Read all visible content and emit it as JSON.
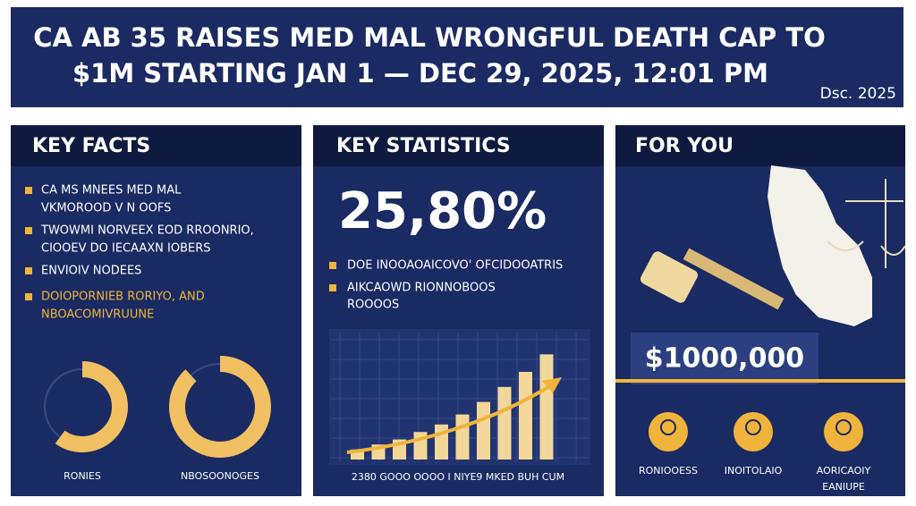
{
  "header": {
    "title_lines": [
      "CA AB 35 RAISES MED MAL WRONGFUL DEATH CAP TO",
      "$1M STARTING JAN 1 — DEC 29, 2025, 12:01 PM"
    ],
    "date": "Dsc. 2025"
  },
  "panels": {
    "key_facts": {
      "title": "KEY FACTS",
      "bullets": [
        {
          "lines": [
            "CA MS MNEES MED MAL",
            "VKMOROOD V N OOFS"
          ],
          "color": "#ffffff"
        },
        {
          "lines": [
            "TWOWMI NORVEEX EOD RROONRIO,",
            "CIOOEV DO IECAAXN IOBERS"
          ],
          "color": "#ffffff"
        },
        {
          "lines": [
            "ENVIOIV NODEES"
          ],
          "color": "#ffffff"
        },
        {
          "lines": [
            "DOIOPORNIEB RORIYO, AND",
            "NBOACOMIVRUUNE"
          ],
          "color": "#f0b43c"
        }
      ],
      "donuts": [
        {
          "label": "RONIES",
          "value": 60
        },
        {
          "label": "NBOSOONOGES",
          "value": 88
        }
      ]
    },
    "key_statistics": {
      "title": "KEY STATISTICS",
      "figure": "25,80%",
      "bullets": [
        {
          "lines": [
            "DOE INOOAOAICOVO' OFCIDOOATRIS"
          ]
        },
        {
          "lines": [
            "AIKCAOWD RIONNOBOOS",
            "ROOOOS"
          ]
        }
      ],
      "trend_bars": [
        8,
        12,
        16,
        22,
        28,
        36,
        46,
        58,
        70,
        84
      ],
      "caption": "2380 GOOO OOOO I NIYE9 MKED BUH CUM"
    },
    "for_you": {
      "title": "FOR YOU",
      "amount": "$1000,000",
      "icons": [
        {
          "lines": [
            "RONIOOESS"
          ]
        },
        {
          "lines": [
            "INOITOLAIO"
          ]
        },
        {
          "lines": [
            "AORICAOIY",
            "EANIUPE"
          ]
        }
      ]
    }
  }
}
